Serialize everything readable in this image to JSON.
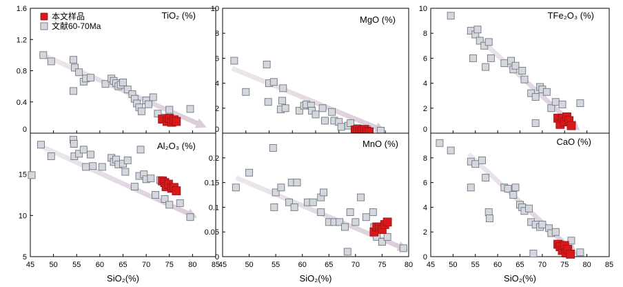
{
  "legend": {
    "this_study": "本文样品",
    "literature": "文献60-70Ma",
    "this_study_color": "#d7191c",
    "literature_color": "#d4d8de"
  },
  "x_label": "SiO₂(%)",
  "chart_data": [
    {
      "type": "scatter",
      "title": "TiO₂  (%)",
      "xlim": [
        45,
        85
      ],
      "ylim": [
        0,
        1.6
      ],
      "x_ticks": [
        "45",
        "50",
        "55",
        "60",
        "65",
        "70",
        "75",
        "80",
        "85"
      ],
      "y_ticks": [
        "0",
        "0.4",
        "0.8",
        "1.2",
        "1.6"
      ],
      "trend": [
        [
          47,
          1.02
        ],
        [
          82,
          0.1
        ]
      ],
      "series": [
        {
          "key": "literature",
          "points": [
            [
              47.8,
              1.0
            ],
            [
              49.5,
              0.92
            ],
            [
              54.3,
              0.94
            ],
            [
              54.6,
              0.84
            ],
            [
              55.5,
              0.78
            ],
            [
              56.5,
              0.66
            ],
            [
              57,
              0.7
            ],
            [
              58,
              0.71
            ],
            [
              54.3,
              0.54
            ],
            [
              61.2,
              0.63
            ],
            [
              62.5,
              0.7
            ],
            [
              63,
              0.67
            ],
            [
              63.5,
              0.64
            ],
            [
              64,
              0.6
            ],
            [
              64.5,
              0.62
            ],
            [
              65,
              0.65
            ],
            [
              66,
              0.56
            ],
            [
              67,
              0.5
            ],
            [
              67.5,
              0.44
            ],
            [
              68,
              0.38
            ],
            [
              68.5,
              0.33
            ],
            [
              69,
              0.28
            ],
            [
              70,
              0.42
            ],
            [
              70.5,
              0.37
            ],
            [
              71.5,
              0.46
            ],
            [
              72.5,
              0.25
            ],
            [
              74,
              0.2
            ],
            [
              75,
              0.3
            ],
            [
              76.5,
              0.15
            ],
            [
              79.5,
              0.31
            ]
          ]
        },
        {
          "key": "this_study",
          "points": [
            [
              73.5,
              0.18
            ],
            [
              74.5,
              0.15
            ],
            [
              75,
              0.19
            ],
            [
              75.5,
              0.14
            ],
            [
              76,
              0.17
            ],
            [
              76.5,
              0.15
            ]
          ]
        }
      ]
    },
    {
      "type": "scatter",
      "title": "MgO  (%)",
      "xlim": [
        45,
        85
      ],
      "ylim": [
        0,
        10
      ],
      "x_ticks": [
        "45",
        "50",
        "55",
        "60",
        "65",
        "70",
        "75",
        "80",
        "85"
      ],
      "y_ticks": [
        "0",
        "2",
        "4",
        "6",
        "8",
        "10"
      ],
      "trend": [
        [
          47,
          5.2
        ],
        [
          79,
          0.3
        ]
      ],
      "series": [
        {
          "key": "literature",
          "points": [
            [
              47.5,
              5.8
            ],
            [
              50,
              3.3
            ],
            [
              54.5,
              5.5
            ],
            [
              55,
              4.0
            ],
            [
              56,
              4.1
            ],
            [
              58,
              3.6
            ],
            [
              54.8,
              2.5
            ],
            [
              57.8,
              2.6
            ],
            [
              57.5,
              1.9
            ],
            [
              58.5,
              2.0
            ],
            [
              61.5,
              1.8
            ],
            [
              62.5,
              2.2
            ],
            [
              63,
              2.3
            ],
            [
              64,
              2.2
            ],
            [
              64.2,
              1.8
            ],
            [
              65,
              1.5
            ],
            [
              66.5,
              2.0
            ],
            [
              67,
              1.0
            ],
            [
              68.5,
              1.7
            ],
            [
              69,
              1.0
            ],
            [
              70,
              0.9
            ],
            [
              70.5,
              0.5
            ],
            [
              72,
              0.6
            ],
            [
              72.5,
              0.8
            ],
            [
              74,
              0.4
            ],
            [
              76,
              0.3
            ],
            [
              79,
              0.2
            ]
          ]
        },
        {
          "key": "this_study",
          "points": [
            [
              73.5,
              0.25
            ],
            [
              74,
              0.3
            ],
            [
              74.5,
              0.15
            ],
            [
              75,
              0.2
            ],
            [
              75.5,
              0.3
            ],
            [
              76,
              0.15
            ],
            [
              76.5,
              0.1
            ]
          ]
        }
      ]
    },
    {
      "type": "scatter",
      "title": "TFe₂O₃  (%)",
      "xlim": [
        45,
        85
      ],
      "ylim": [
        0,
        10
      ],
      "x_ticks": [
        "45",
        "50",
        "55",
        "60",
        "65",
        "70",
        "75",
        "80",
        "85"
      ],
      "y_ticks": [
        "0",
        "2",
        "4",
        "6",
        "8",
        "10"
      ],
      "trend": [
        [
          54,
          8.2
        ],
        [
          77.5,
          0.5
        ]
      ],
      "series": [
        {
          "key": "literature",
          "points": [
            [
              49.5,
              9.4
            ],
            [
              54,
              8.2
            ],
            [
              55,
              7.9
            ],
            [
              55.5,
              8.3
            ],
            [
              56,
              7.4
            ],
            [
              57,
              7.0
            ],
            [
              58,
              7.3
            ],
            [
              58.5,
              6.0
            ],
            [
              54.5,
              6.0
            ],
            [
              57.3,
              5.3
            ],
            [
              61.5,
              5.6
            ],
            [
              63,
              5.8
            ],
            [
              63.5,
              5.1
            ],
            [
              64,
              5.4
            ],
            [
              65.5,
              5.0
            ],
            [
              66,
              4.3
            ],
            [
              67.5,
              3.2
            ],
            [
              68.5,
              2.9
            ],
            [
              69.5,
              3.7
            ],
            [
              70,
              3.5
            ],
            [
              71,
              3.3
            ],
            [
              72,
              2.0
            ],
            [
              73,
              2.5
            ],
            [
              74.5,
              2.3
            ],
            [
              68.5,
              0.8
            ],
            [
              78.5,
              2.4
            ]
          ]
        },
        {
          "key": "this_study",
          "points": [
            [
              73.5,
              1.2
            ],
            [
              74,
              0.7
            ],
            [
              74.5,
              1.2
            ],
            [
              75,
              0.9
            ],
            [
              75.5,
              1.3
            ],
            [
              76,
              1.0
            ],
            [
              76.5,
              0.6
            ]
          ]
        }
      ]
    },
    {
      "type": "scatter",
      "title": "Al₂O₃  (%)",
      "xlim": [
        45,
        85
      ],
      "ylim": [
        5,
        20
      ],
      "x_ticks": [
        "45",
        "50",
        "55",
        "60",
        "65",
        "70",
        "75",
        "80",
        "85"
      ],
      "y_ticks": [
        "5",
        "10",
        "15"
      ],
      "trend": [
        [
          47,
          18.5
        ],
        [
          80,
          10.0
        ]
      ],
      "series": [
        {
          "key": "literature",
          "points": [
            [
              45.3,
              14.9
            ],
            [
              47.3,
              18.6
            ],
            [
              49.5,
              17.2
            ],
            [
              54.3,
              19.2
            ],
            [
              54.4,
              18.7
            ],
            [
              54.5,
              17.2
            ],
            [
              55.5,
              17.5
            ],
            [
              56.5,
              18.0
            ],
            [
              57,
              15.9
            ],
            [
              58,
              17.4
            ],
            [
              58.5,
              16.0
            ],
            [
              60.5,
              15.9
            ],
            [
              62.5,
              17.0
            ],
            [
              63,
              16.5
            ],
            [
              63.5,
              16.8
            ],
            [
              64,
              16.2
            ],
            [
              65,
              16.3
            ],
            [
              65.5,
              15.3
            ],
            [
              66,
              16.7
            ],
            [
              67.5,
              13.5
            ],
            [
              68.5,
              14.8
            ],
            [
              68.8,
              18.0
            ],
            [
              69.5,
              15.0
            ],
            [
              70,
              14.4
            ],
            [
              71,
              14.5
            ],
            [
              72,
              12.5
            ],
            [
              73,
              14.3
            ],
            [
              74,
              12.0
            ],
            [
              75,
              11.3
            ],
            [
              77.3,
              11.5
            ],
            [
              79.5,
              9.8
            ]
          ]
        },
        {
          "key": "this_study",
          "points": [
            [
              73.5,
              14.2
            ],
            [
              74,
              14.0
            ],
            [
              74.3,
              13.5
            ],
            [
              74.8,
              13.8
            ],
            [
              75.5,
              13.3
            ],
            [
              76,
              13.4
            ],
            [
              76.5,
              13.0
            ]
          ]
        }
      ]
    },
    {
      "type": "scatter",
      "title": "MnO  (%)",
      "xlim": [
        45,
        80
      ],
      "ylim": [
        0,
        0.25
      ],
      "x_ticks": [
        "45",
        "50",
        "55",
        "60",
        "65",
        "70",
        "75",
        "80"
      ],
      "y_ticks": [
        "0",
        "0.05",
        "0.1",
        "0.15",
        "0.2"
      ],
      "trend": [
        [
          47.5,
          0.16
        ],
        [
          79,
          0.017
        ]
      ],
      "series": [
        {
          "key": "literature",
          "points": [
            [
              47.5,
              0.14
            ],
            [
              50,
              0.17
            ],
            [
              54.5,
              0.22
            ],
            [
              55,
              0.13
            ],
            [
              56,
              0.14
            ],
            [
              57.5,
              0.11
            ],
            [
              58,
              0.15
            ],
            [
              59,
              0.15
            ],
            [
              54.7,
              0.1
            ],
            [
              58.5,
              0.1
            ],
            [
              61,
              0.11
            ],
            [
              62,
              0.11
            ],
            [
              63.5,
              0.12
            ],
            [
              64,
              0.13
            ],
            [
              63.5,
              0.09
            ],
            [
              65,
              0.07
            ],
            [
              66,
              0.07
            ],
            [
              67,
              0.07
            ],
            [
              68,
              0.06
            ],
            [
              69,
              0.09
            ],
            [
              70,
              0.07
            ],
            [
              71,
              0.12
            ],
            [
              72,
              0.08
            ],
            [
              73.3,
              0.09
            ],
            [
              73.5,
              0.06
            ],
            [
              74,
              0.04
            ],
            [
              75,
              0.03
            ],
            [
              76,
              0.04
            ],
            [
              68.5,
              0.01
            ],
            [
              79,
              0.017
            ]
          ]
        },
        {
          "key": "this_study",
          "points": [
            [
              73.5,
              0.05
            ],
            [
              74,
              0.06
            ],
            [
              74.5,
              0.06
            ],
            [
              75,
              0.055
            ],
            [
              75.5,
              0.065
            ],
            [
              76,
              0.07
            ]
          ]
        }
      ]
    },
    {
      "type": "scatter",
      "title": "CaO  (%)",
      "xlim": [
        45,
        85
      ],
      "ylim": [
        0,
        10
      ],
      "x_ticks": [
        "45",
        "50",
        "55",
        "60",
        "65",
        "70",
        "75",
        "80",
        "85"
      ],
      "y_ticks": [
        "0",
        "2",
        "4",
        "6",
        "8"
      ],
      "trend": [
        [
          53.5,
          8.3
        ],
        [
          77,
          0.4
        ]
      ],
      "series": [
        {
          "key": "literature",
          "points": [
            [
              47,
              9.2
            ],
            [
              49.5,
              8.6
            ],
            [
              54,
              7.7
            ],
            [
              55,
              7.5
            ],
            [
              56.5,
              7.8
            ],
            [
              57.3,
              6.4
            ],
            [
              54,
              5.6
            ],
            [
              58,
              3.6
            ],
            [
              58.2,
              3.1
            ],
            [
              61.5,
              5.6
            ],
            [
              62.3,
              5.5
            ],
            [
              63.5,
              5.0
            ],
            [
              64,
              5.6
            ],
            [
              65,
              4.2
            ],
            [
              65.5,
              4.0
            ],
            [
              66,
              3.7
            ],
            [
              67,
              3.9
            ],
            [
              67.5,
              2.8
            ],
            [
              68.5,
              2.6
            ],
            [
              69.5,
              2.4
            ],
            [
              70,
              2.6
            ],
            [
              71.5,
              2.3
            ],
            [
              72,
              1.9
            ],
            [
              73,
              2.0
            ],
            [
              74,
              1.0
            ],
            [
              68,
              0.25
            ],
            [
              76.5,
              1.3
            ],
            [
              78.5,
              0.35
            ],
            [
              75.5,
              0.3
            ]
          ]
        },
        {
          "key": "this_study",
          "points": [
            [
              73.5,
              1.0
            ],
            [
              74,
              0.8
            ],
            [
              74.5,
              0.5
            ],
            [
              75,
              0.9
            ],
            [
              75.3,
              0.3
            ],
            [
              75.7,
              0.6
            ],
            [
              76.3,
              0.2
            ]
          ]
        }
      ]
    }
  ]
}
